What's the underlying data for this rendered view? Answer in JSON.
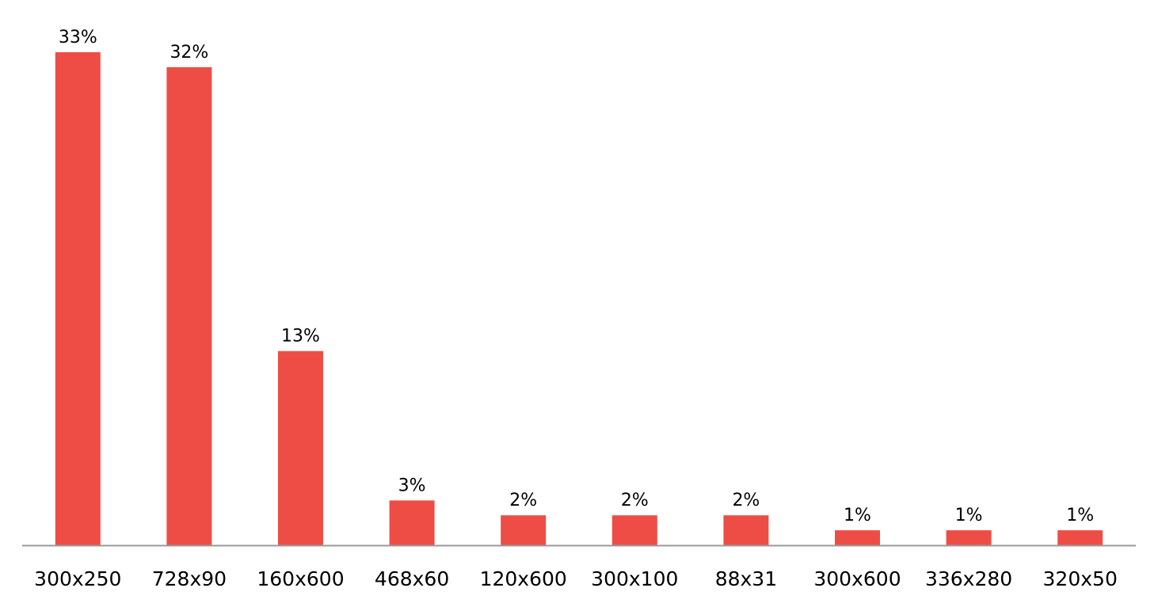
{
  "chart_data": {
    "type": "bar",
    "title": "",
    "xlabel": "",
    "ylabel": "",
    "categories": [
      "300x250",
      "728x90",
      "160x600",
      "468x60",
      "120x600",
      "300x100",
      "88x31",
      "300x600",
      "336x280",
      "320x50"
    ],
    "values": [
      33,
      32,
      13,
      3,
      2,
      2,
      2,
      1,
      1,
      1
    ],
    "value_labels": [
      "33%",
      "32%",
      "13%",
      "3%",
      "2%",
      "2%",
      "2%",
      "1%",
      "1%",
      "1%"
    ],
    "unit": "%",
    "ylim": [
      0,
      33
    ],
    "grid": false,
    "legend": "none",
    "colors": {
      "bar": "#EE4D45",
      "axis": "#999999"
    }
  }
}
